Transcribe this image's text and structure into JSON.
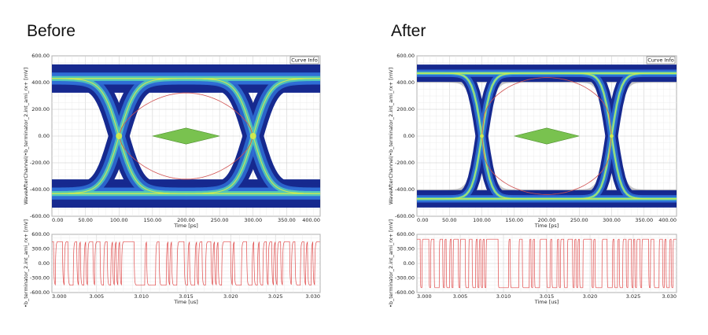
{
  "headings": {
    "left": "Before",
    "right": "After"
  },
  "curve_info_label": "Curve Info",
  "colors": {
    "eye_deep": "#16298f",
    "eye_mid": "#2f6fd6",
    "eye_core": "#53c8b8",
    "eye_hot": "#d6ee48",
    "gray_band": "#9a9aa0",
    "mask": "#79c24f",
    "trace": "#e04a4a",
    "grid": "#d9d9d9"
  },
  "chart_data": [
    {
      "name_hint": "before-eye",
      "type": "line",
      "title": "",
      "xlabel": "Time [ps]",
      "ylabel": "WaveAfterChannel/•b_terminator_2.int_ami_rx+ [mV]",
      "xlim": [
        0,
        400
      ],
      "ylim": [
        -600,
        600
      ],
      "xticks": [
        "0.00",
        "50.00",
        "100.00",
        "150.00",
        "200.00",
        "250.00",
        "300.00",
        "350.00",
        "400.00"
      ],
      "yticks": [
        "600.00",
        "400.00",
        "200.00",
        "0.00",
        "-200.00",
        "-400.00",
        "-600.00"
      ],
      "levels": [
        430,
        -430
      ],
      "crossings": [
        100,
        300
      ],
      "mask": {
        "center_x": 200,
        "half_width": 50,
        "half_height": 60
      }
    },
    {
      "name_hint": "before-transient",
      "type": "line",
      "title": "",
      "xlabel": "Time [us]",
      "ylabel": "•b_terminator_2.int_ami_rx+ [mV]",
      "xlim": [
        3.0,
        3.03
      ],
      "ylim": [
        -600,
        600
      ],
      "xticks": [
        "3.000",
        "3.005",
        "3.010",
        "3.015",
        "3.020",
        "3.025",
        "3.030"
      ],
      "yticks": [
        "600.00",
        "300.00",
        "0.00",
        "-300.00",
        "-600.00"
      ],
      "amplitude": 450
    },
    {
      "name_hint": "after-eye",
      "type": "line",
      "title": "",
      "xlabel": "Time [ps]",
      "ylabel": "WaveAfterChannel/•b_terminator_2.int_ami_rx+ [mV]",
      "xlim": [
        0,
        400
      ],
      "ylim": [
        -600,
        600
      ],
      "xticks": [
        "0.00",
        "50.00",
        "100.00",
        "150.00",
        "200.00",
        "250.00",
        "300.00",
        "350.00",
        "400.00"
      ],
      "yticks": [
        "600.00",
        "400.00",
        "200.00",
        "0.00",
        "-200.00",
        "-400.00",
        "-600.00"
      ],
      "levels": [
        470,
        -470
      ],
      "crossings": [
        100,
        300
      ],
      "mask": {
        "center_x": 200,
        "half_width": 50,
        "half_height": 60
      }
    },
    {
      "name_hint": "after-transient",
      "type": "line",
      "title": "",
      "xlabel": "Time [us]",
      "ylabel": "•b_terminator_2.int_ami_rx+ [mV]",
      "xlim": [
        3.0,
        3.03
      ],
      "ylim": [
        -600,
        600
      ],
      "xticks": [
        "3.000",
        "3.005",
        "3.010",
        "3.015",
        "3.020",
        "3.025",
        "3.030"
      ],
      "yticks": [
        "600.00",
        "300.00",
        "0.00",
        "-300.00",
        "-600.00"
      ],
      "amplitude": 500
    }
  ]
}
